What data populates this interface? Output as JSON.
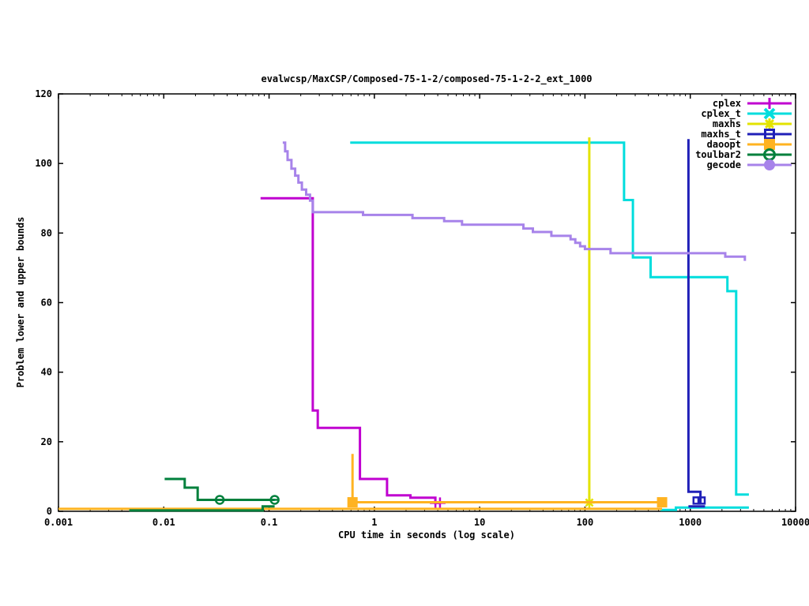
{
  "chart_data": {
    "type": "line",
    "title": "evalwcsp/MaxCSP/Composed-75-1-2/composed-75-1-2-2_ext_1000",
    "xlabel": "CPU time in seconds (log scale)",
    "ylabel": "Problem lower and upper bounds",
    "grid": false,
    "legend_position": "top-right-inside",
    "x_axis": {
      "scale": "log",
      "min": 0.001,
      "max": 10000,
      "tick_labels": [
        "0.001",
        "0.01",
        "0.1",
        "1",
        "10",
        "100",
        "1000",
        "10000"
      ]
    },
    "y_axis": {
      "min": 0,
      "max": 120,
      "ticks": [
        0,
        20,
        40,
        60,
        80,
        100,
        120
      ]
    },
    "series": [
      {
        "name": "cplex",
        "color": "#C000D0",
        "marker": "plus",
        "paths": [
          [
            [
              0.083,
              90
            ],
            [
              0.26,
              90
            ],
            [
              0.26,
              29
            ],
            [
              0.29,
              29
            ],
            [
              0.29,
              24
            ],
            [
              0.73,
              24
            ],
            [
              0.73,
              9.3
            ],
            [
              1.32,
              9.3
            ],
            [
              1.32,
              4.6
            ],
            [
              2.2,
              4.6
            ],
            [
              2.2,
              3.9
            ],
            [
              3.8,
              3.9
            ],
            [
              3.8,
              2.4
            ],
            [
              4.2,
              2.4
            ]
          ]
        ],
        "marker_points": [
          [
            3.8,
            2.4
          ],
          [
            4.2,
            2.4
          ]
        ]
      },
      {
        "name": "cplex_t",
        "color": "#00DDDD",
        "marker": "x",
        "paths": [
          [
            [
              0.59,
              106
            ],
            [
              235,
              106
            ],
            [
              235,
              89.5
            ],
            [
              285,
              89.5
            ],
            [
              285,
              73
            ],
            [
              420,
              73
            ],
            [
              420,
              67.3
            ],
            [
              2250,
              67.3
            ],
            [
              2250,
              63.3
            ],
            [
              2730,
              63.3
            ],
            [
              2730,
              4.8
            ],
            [
              3600,
              4.8
            ]
          ],
          [
            [
              520,
              0.4
            ],
            [
              730,
              0.4
            ],
            [
              730,
              1.1
            ],
            [
              3600,
              1.1
            ]
          ]
        ],
        "marker_points": []
      },
      {
        "name": "maxhs",
        "color": "#E3E300",
        "marker": "asterisk",
        "paths": [
          [
            [
              110,
              107.5
            ],
            [
              110,
              2.5
            ]
          ]
        ],
        "marker_points": [
          [
            110,
            2.5
          ]
        ]
      },
      {
        "name": "maxhs_t",
        "color": "#2020B8",
        "marker": "open-square",
        "paths": [
          [
            [
              960,
              107
            ],
            [
              960,
              5.6
            ],
            [
              1250,
              5.6
            ],
            [
              1250,
              2.2
            ]
          ],
          [
            [
              960,
              1.4
            ],
            [
              1380,
              1.4
            ]
          ]
        ],
        "marker_points": [
          [
            1150,
            3.1
          ],
          [
            1280,
            3.1
          ]
        ]
      },
      {
        "name": "daoopt",
        "color": "#FFB321",
        "marker": "filled-square",
        "paths": [
          [
            [
              0.001,
              0.7
            ],
            [
              540,
              0.7
            ]
          ],
          [
            [
              0.62,
              16.5
            ],
            [
              0.62,
              2.6
            ],
            [
              540,
              2.6
            ]
          ]
        ],
        "marker_points": [
          [
            0.62,
            2.6
          ],
          [
            540,
            2.6
          ]
        ]
      },
      {
        "name": "toulbar2",
        "color": "#00803C",
        "marker": "dash-circle",
        "paths": [
          [
            [
              0.0047,
              0.25
            ],
            [
              0.087,
              0.25
            ],
            [
              0.087,
              1.4
            ],
            [
              0.113,
              1.4
            ]
          ],
          [
            [
              0.0102,
              9.3
            ],
            [
              0.0158,
              9.3
            ],
            [
              0.0158,
              6.8
            ],
            [
              0.021,
              6.8
            ],
            [
              0.021,
              3.3
            ],
            [
              0.113,
              3.3
            ]
          ]
        ],
        "marker_points": [
          [
            0.034,
            3.3
          ],
          [
            0.113,
            3.3
          ]
        ]
      },
      {
        "name": "gecode",
        "color": "#A783EA",
        "marker": "filled-circle",
        "paths": [
          [
            [
              0.135,
              106
            ],
            [
              0.142,
              106
            ],
            [
              0.142,
              103.5
            ],
            [
              0.15,
              103.5
            ],
            [
              0.15,
              101
            ],
            [
              0.163,
              101
            ],
            [
              0.163,
              98.5
            ],
            [
              0.177,
              98.5
            ],
            [
              0.177,
              96.5
            ],
            [
              0.19,
              96.5
            ],
            [
              0.19,
              94.5
            ],
            [
              0.205,
              94.5
            ],
            [
              0.205,
              92.5
            ],
            [
              0.225,
              92.5
            ],
            [
              0.225,
              91
            ],
            [
              0.245,
              91
            ],
            [
              0.245,
              89.3
            ],
            [
              0.26,
              89.3
            ],
            [
              0.26,
              86
            ],
            [
              0.78,
              86
            ],
            [
              0.78,
              85.2
            ],
            [
              2.3,
              85.2
            ],
            [
              2.3,
              84.3
            ],
            [
              4.6,
              84.3
            ],
            [
              4.6,
              83.4
            ],
            [
              6.8,
              83.4
            ],
            [
              6.8,
              82.4
            ],
            [
              26,
              82.4
            ],
            [
              26,
              81.3
            ],
            [
              32,
              81.3
            ],
            [
              32,
              80.3
            ],
            [
              48,
              80.3
            ],
            [
              48,
              79.2
            ],
            [
              73,
              79.2
            ],
            [
              73,
              78.2
            ],
            [
              81,
              78.2
            ],
            [
              81,
              77.2
            ],
            [
              90,
              77.2
            ],
            [
              90,
              76.2
            ],
            [
              100,
              76.2
            ],
            [
              100,
              75.4
            ],
            [
              175,
              75.4
            ],
            [
              175,
              74.2
            ],
            [
              2150,
              74.2
            ],
            [
              2150,
              73.2
            ],
            [
              3300,
              73.2
            ],
            [
              3300,
              72
            ]
          ]
        ],
        "marker_points": []
      }
    ]
  }
}
